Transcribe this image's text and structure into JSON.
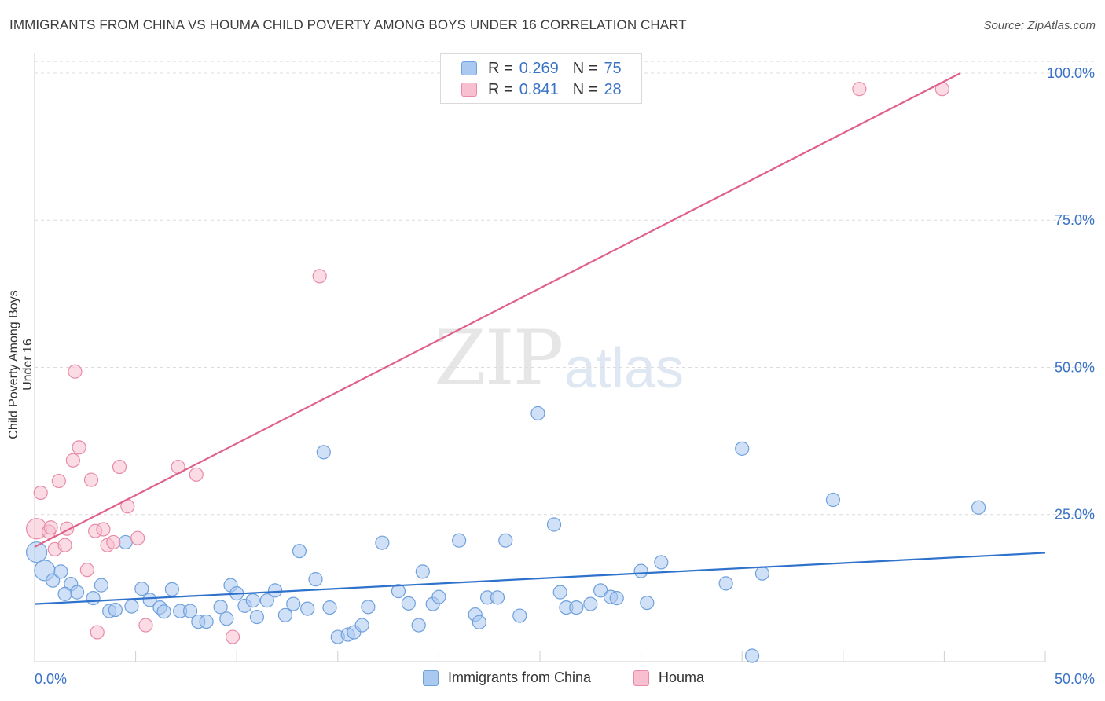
{
  "chart_data": {
    "type": "scatter",
    "title": "IMMIGRANTS FROM CHINA VS HOUMA CHILD POVERTY AMONG BOYS UNDER 16 CORRELATION CHART",
    "source": "Source: ZipAtlas.com",
    "xlabel": "",
    "ylabel": "Child Poverty Among Boys Under 16",
    "xlim": [
      0,
      50
    ],
    "ylim": [
      0,
      102
    ],
    "x_tick_labels": [
      "0.0%",
      "50.0%"
    ],
    "y_tick_labels": [
      "100.0%",
      "75.0%",
      "50.0%",
      "25.0%"
    ],
    "y_ticks": [
      100,
      75,
      50,
      25
    ],
    "watermark": "ZIPatlas",
    "legend": [
      {
        "name": "Immigrants from China",
        "r_label": "R =",
        "r": "0.269",
        "n_label": "N =",
        "n": "75",
        "color": "#a9c9f0",
        "stroke": "#6fa0dc",
        "line": "#2e72cc"
      },
      {
        "name": "Houma",
        "r_label": "R =",
        "r": "0.841",
        "n_label": "N =",
        "n": "28",
        "color": "#f7bfd0",
        "stroke": "#e98aa8",
        "line": "#e0608a"
      }
    ],
    "series": [
      {
        "name": "Immigrants from China",
        "trend": {
          "x0": 0,
          "y0": 9.8,
          "x1": 50,
          "y1": 18.5
        },
        "points": [
          [
            0.1,
            18.6
          ],
          [
            0.5,
            15.5
          ],
          [
            0.9,
            13.8
          ],
          [
            1.3,
            15.3
          ],
          [
            1.8,
            13.2
          ],
          [
            2.1,
            11.8
          ],
          [
            2.9,
            10.8
          ],
          [
            3.3,
            13.0
          ],
          [
            3.7,
            8.6
          ],
          [
            4.0,
            8.8
          ],
          [
            4.8,
            9.4
          ],
          [
            4.5,
            20.3
          ],
          [
            5.3,
            12.4
          ],
          [
            5.7,
            10.5
          ],
          [
            6.2,
            9.2
          ],
          [
            6.4,
            8.5
          ],
          [
            6.8,
            12.3
          ],
          [
            7.2,
            8.6
          ],
          [
            7.7,
            8.6
          ],
          [
            8.1,
            6.8
          ],
          [
            8.5,
            6.8
          ],
          [
            9.2,
            9.3
          ],
          [
            9.5,
            7.3
          ],
          [
            9.7,
            13.0
          ],
          [
            10.0,
            11.6
          ],
          [
            10.4,
            9.5
          ],
          [
            10.8,
            10.4
          ],
          [
            11.0,
            7.6
          ],
          [
            11.5,
            10.4
          ],
          [
            11.9,
            12.1
          ],
          [
            12.4,
            7.9
          ],
          [
            12.8,
            9.8
          ],
          [
            13.1,
            18.8
          ],
          [
            13.5,
            9.0
          ],
          [
            13.9,
            14.0
          ],
          [
            14.3,
            35.6
          ],
          [
            14.6,
            9.2
          ],
          [
            15.0,
            4.2
          ],
          [
            15.5,
            4.6
          ],
          [
            15.8,
            5.0
          ],
          [
            16.2,
            6.2
          ],
          [
            16.5,
            9.3
          ],
          [
            17.2,
            20.2
          ],
          [
            18.0,
            12.0
          ],
          [
            18.5,
            9.9
          ],
          [
            19.0,
            6.2
          ],
          [
            19.2,
            15.3
          ],
          [
            19.7,
            9.8
          ],
          [
            20.0,
            11.0
          ],
          [
            21.0,
            20.6
          ],
          [
            21.8,
            8.0
          ],
          [
            22.0,
            6.7
          ],
          [
            22.4,
            10.9
          ],
          [
            22.9,
            10.9
          ],
          [
            23.3,
            20.6
          ],
          [
            24.0,
            7.8
          ],
          [
            24.9,
            42.2
          ],
          [
            25.7,
            23.3
          ],
          [
            26.0,
            11.8
          ],
          [
            26.3,
            9.2
          ],
          [
            26.8,
            9.2
          ],
          [
            27.5,
            9.8
          ],
          [
            28.0,
            12.1
          ],
          [
            28.5,
            11.0
          ],
          [
            28.8,
            10.8
          ],
          [
            30.0,
            15.4
          ],
          [
            30.3,
            10.0
          ],
          [
            31.0,
            16.9
          ],
          [
            34.2,
            13.3
          ],
          [
            35.0,
            36.2
          ],
          [
            35.5,
            1.0
          ],
          [
            36.0,
            15.0
          ],
          [
            39.5,
            27.5
          ],
          [
            46.7,
            26.2
          ],
          [
            1.5,
            11.5
          ]
        ]
      },
      {
        "name": "Houma",
        "trend": {
          "x0": 0,
          "y0": 19.5,
          "x1": 45.8,
          "y1": 100
        },
        "points": [
          [
            0.1,
            22.6
          ],
          [
            0.3,
            28.7
          ],
          [
            0.7,
            22.1
          ],
          [
            0.8,
            22.8
          ],
          [
            1.0,
            19.1
          ],
          [
            1.2,
            30.7
          ],
          [
            1.5,
            19.8
          ],
          [
            1.6,
            22.6
          ],
          [
            1.9,
            34.2
          ],
          [
            2.0,
            49.3
          ],
          [
            2.2,
            36.4
          ],
          [
            2.6,
            15.6
          ],
          [
            2.8,
            30.9
          ],
          [
            3.0,
            22.2
          ],
          [
            3.1,
            5.0
          ],
          [
            3.4,
            22.5
          ],
          [
            3.6,
            19.8
          ],
          [
            3.9,
            20.3
          ],
          [
            4.2,
            33.1
          ],
          [
            4.6,
            26.4
          ],
          [
            5.1,
            21.0
          ],
          [
            5.5,
            6.2
          ],
          [
            7.1,
            33.1
          ],
          [
            8.0,
            31.8
          ],
          [
            9.8,
            4.2
          ],
          [
            14.1,
            65.5
          ],
          [
            40.8,
            97.3
          ],
          [
            44.9,
            97.3
          ]
        ]
      }
    ]
  }
}
